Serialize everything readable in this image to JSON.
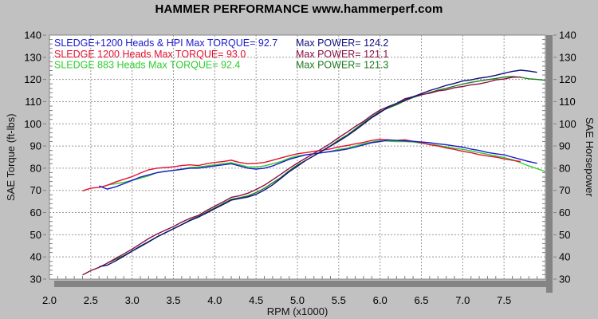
{
  "title": "HAMMER PERFORMANCE www.hammerperf.com",
  "chart_data": {
    "type": "line",
    "title": "HAMMER PERFORMANCE www.hammerperf.com",
    "x_axis": {
      "label": "RPM (x1000)",
      "min": 2.0,
      "max": 8.0,
      "major_step": 0.5,
      "minor_step": 0.1,
      "tick_labels": [
        "2.0",
        "2.5",
        "3.0",
        "3.5",
        "4.0",
        "4.5",
        "5.0",
        "5.5",
        "6.0",
        "6.5",
        "7.0",
        "7.5"
      ]
    },
    "y_left": {
      "label": "SAE Torque (ft-lbs)",
      "min": 30,
      "max": 140,
      "major_step": 10,
      "minor_step": 2,
      "tick_labels": [
        "30",
        "40",
        "50",
        "60",
        "70",
        "80",
        "90",
        "100",
        "110",
        "120",
        "130",
        "140"
      ]
    },
    "y_right": {
      "label": "SAE Horsepower",
      "min": 30,
      "max": 140,
      "major_step": 10,
      "minor_step": 2,
      "tick_labels": [
        "30",
        "40",
        "50",
        "60",
        "70",
        "80",
        "90",
        "100",
        "110",
        "120",
        "130",
        "140"
      ]
    },
    "grid": {
      "on": true,
      "style": "dashed"
    },
    "legend_position": "top-left-inside",
    "colors": {
      "background": "#c1c1c1",
      "plot_bg": "#ffffff",
      "grid": "#989898",
      "frame": "#848484",
      "tick": "#7f7f7f",
      "text": "#000000"
    },
    "legend": [
      {
        "torque_text": "SLEDGE+1200 Heads & HPI  Max TORQUE= 92.7",
        "power_text": "Max POWER= 124.2",
        "torque_color": "#1a1ace",
        "power_color": "#10107e",
        "max_torque": 92.7,
        "max_power": 124.2
      },
      {
        "torque_text": "SLEDGE 1200 Heads  Max TORQUE= 93.0",
        "power_text": "Max POWER= 121.1",
        "torque_color": "#e4102e",
        "power_color": "#8c1040",
        "max_torque": 93.0,
        "max_power": 121.1
      },
      {
        "torque_text": "SLEDGE 883 Heads  Max TORQUE= 92.4",
        "power_text": "Max POWER= 121.3",
        "torque_color": "#30cc30",
        "power_color": "#1e7a1e",
        "max_torque": 92.4,
        "max_power": 121.3
      }
    ],
    "series": [
      {
        "id": "sledge-883-torque",
        "name": "SLEDGE 883 Heads - Torque (ft-lbs)",
        "axis": "left",
        "color": "#30cc30",
        "rpm_start": 2.7,
        "rpm_step": 0.1,
        "values": [
          72.5,
          73.0,
          73.6,
          74.5,
          75.5,
          76.6,
          78.0,
          78.5,
          79.0,
          79.6,
          80.3,
          80.5,
          81.0,
          81.5,
          82.0,
          82.5,
          81.5,
          80.6,
          80.5,
          81.0,
          82.0,
          83.0,
          84.5,
          85.5,
          86.0,
          86.5,
          87.0,
          87.6,
          88.5,
          89.0,
          90.0,
          91.0,
          91.8,
          92.4,
          92.2,
          92.0,
          92.0,
          91.8,
          91.3,
          90.8,
          90.3,
          89.6,
          89.0,
          88.5,
          87.8,
          87.0,
          86.3,
          85.5,
          84.8,
          83.8,
          82.5,
          81.0,
          79.8,
          78.5
        ]
      },
      {
        "id": "sledge-1200-torque",
        "name": "SLEDGE 1200 Heads - Torque (ft-lbs)",
        "axis": "left",
        "color": "#e4102e",
        "rpm_start": 2.4,
        "rpm_step": 0.1,
        "values": [
          69.8,
          71.0,
          71.3,
          72.3,
          73.8,
          75.0,
          76.2,
          77.8,
          79.3,
          80.0,
          80.3,
          80.6,
          81.2,
          81.5,
          81.2,
          82.0,
          82.6,
          83.0,
          83.6,
          82.6,
          82.0,
          82.2,
          82.6,
          83.6,
          84.6,
          85.6,
          86.5,
          87.0,
          87.6,
          88.1,
          88.7,
          89.6,
          90.2,
          91.0,
          91.6,
          92.5,
          93.0,
          92.8,
          92.5,
          92.8,
          92.1,
          91.5,
          90.6,
          90.0,
          89.1,
          88.5,
          87.6,
          87.0,
          86.1,
          85.5,
          85.0,
          84.2,
          83.6,
          83.0
        ]
      },
      {
        "id": "sledge-1200-hpi-torque",
        "name": "SLEDGE+1200 Heads & HPI - Torque (ft-lbs)",
        "axis": "left",
        "color": "#1a1ace",
        "rpm_start": 2.6,
        "rpm_step": 0.1,
        "values": [
          72.0,
          70.6,
          71.6,
          73.0,
          74.5,
          76.0,
          77.0,
          78.0,
          78.6,
          79.0,
          79.5,
          80.0,
          80.0,
          80.5,
          81.0,
          81.5,
          82.0,
          81.0,
          80.0,
          79.6,
          80.0,
          81.0,
          82.5,
          84.0,
          85.0,
          86.0,
          86.5,
          87.0,
          87.5,
          88.0,
          88.6,
          89.5,
          90.5,
          91.5,
          92.0,
          92.7,
          92.5,
          92.3,
          92.1,
          91.8,
          91.5,
          91.0,
          90.6,
          90.0,
          89.5,
          88.6,
          88.0,
          87.1,
          86.5,
          86.0,
          85.0,
          84.0,
          83.0,
          82.2
        ]
      },
      {
        "id": "sledge-883-power",
        "name": "SLEDGE 883 Heads - Power (hp)",
        "axis": "right",
        "color": "#1e7a1e",
        "rpm_start": 2.7,
        "rpm_step": 0.1,
        "values": [
          37.3,
          38.9,
          40.6,
          42.6,
          44.6,
          46.7,
          49.0,
          50.8,
          52.7,
          54.6,
          56.6,
          58.2,
          60.2,
          62.1,
          64.0,
          66.0,
          66.7,
          67.5,
          69.0,
          70.9,
          73.4,
          75.8,
          78.8,
          81.4,
          83.5,
          85.6,
          87.8,
          90.1,
          92.7,
          94.9,
          97.7,
          100.5,
          103.1,
          105.6,
          107.1,
          108.6,
          110.4,
          111.9,
          113.0,
          114.1,
          115.2,
          116.0,
          117.0,
          117.9,
          118.7,
          119.3,
          119.9,
          120.4,
          121.1,
          121.3,
          121.0,
          120.3,
          120.0,
          119.6
        ]
      },
      {
        "id": "sledge-1200-power",
        "name": "SLEDGE 1200 Heads - Power (hp)",
        "axis": "right",
        "color": "#8c1040",
        "rpm_start": 2.4,
        "rpm_step": 0.1,
        "values": [
          31.9,
          33.8,
          35.3,
          37.2,
          39.3,
          41.4,
          43.5,
          45.9,
          48.3,
          50.3,
          52.0,
          53.7,
          55.7,
          57.4,
          58.7,
          60.9,
          62.9,
          64.8,
          66.9,
          67.6,
          68.7,
          70.4,
          72.3,
          74.8,
          77.3,
          79.9,
          82.3,
          84.5,
          86.7,
          88.9,
          91.2,
          93.8,
          96.2,
          98.8,
          101.1,
          103.9,
          106.2,
          107.8,
          109.2,
          111.3,
          112.2,
          113.2,
          113.8,
          114.8,
          115.3,
          116.3,
          116.8,
          117.6,
          118.0,
          118.8,
          119.8,
          120.2,
          121.0,
          121.1
        ]
      },
      {
        "id": "sledge-1200-hpi-power",
        "name": "SLEDGE+1200 Heads & HPI - Power (hp)",
        "axis": "right",
        "color": "#10107e",
        "rpm_start": 2.6,
        "rpm_step": 0.1,
        "values": [
          35.6,
          36.3,
          38.2,
          40.3,
          42.6,
          44.9,
          46.9,
          49.0,
          50.9,
          52.7,
          54.5,
          56.4,
          57.9,
          59.8,
          61.7,
          63.6,
          65.6,
          66.3,
          67.0,
          68.2,
          70.1,
          72.5,
          75.4,
          78.4,
          80.9,
          83.5,
          85.6,
          87.8,
          90.0,
          92.1,
          94.5,
          97.1,
          99.9,
          102.8,
          105.1,
          107.6,
          109.2,
          110.7,
          112.2,
          113.6,
          115.0,
          116.1,
          117.3,
          118.2,
          119.3,
          119.8,
          120.6,
          121.1,
          121.9,
          122.8,
          123.6,
          124.2,
          123.8,
          123.2
        ]
      }
    ]
  }
}
